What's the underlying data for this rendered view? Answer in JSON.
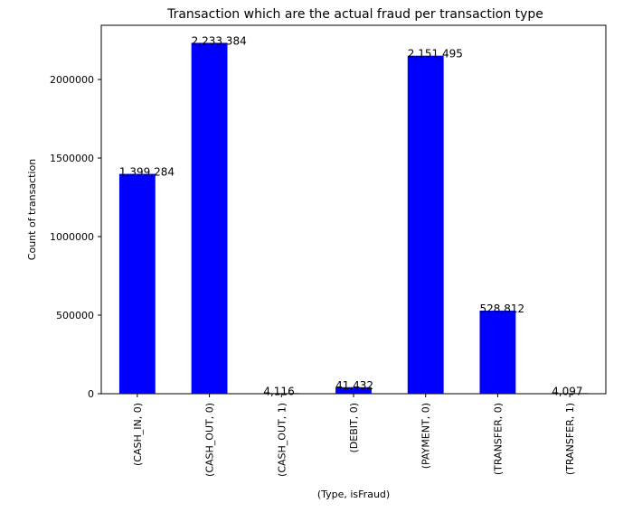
{
  "chart_data": {
    "type": "bar",
    "title": "Transaction which are the actual fraud per transaction type",
    "xlabel": "(Type, isFraud)",
    "ylabel": "Count of transaction",
    "categories": [
      "(CASH_IN, 0)",
      "(CASH_OUT, 0)",
      "(CASH_OUT, 1)",
      "(DEBIT, 0)",
      "(PAYMENT, 0)",
      "(TRANSFER, 0)",
      "(TRANSFER, 1)"
    ],
    "values": [
      1399284,
      2233384,
      4116,
      41432,
      2151495,
      528812,
      4097
    ],
    "data_labels": [
      "1,399,284",
      "2,233,384",
      "4,116",
      "41,432",
      "2,151,495",
      "528,812",
      "4,097"
    ],
    "yticks": [
      0,
      500000,
      1000000,
      1500000,
      2000000
    ],
    "ytick_labels": [
      "0",
      "500000",
      "1000000",
      "1500000",
      "2000000"
    ],
    "ylim": [
      0,
      2345053
    ],
    "bar_color": "#0000ff",
    "grid": false,
    "legend": "none"
  }
}
